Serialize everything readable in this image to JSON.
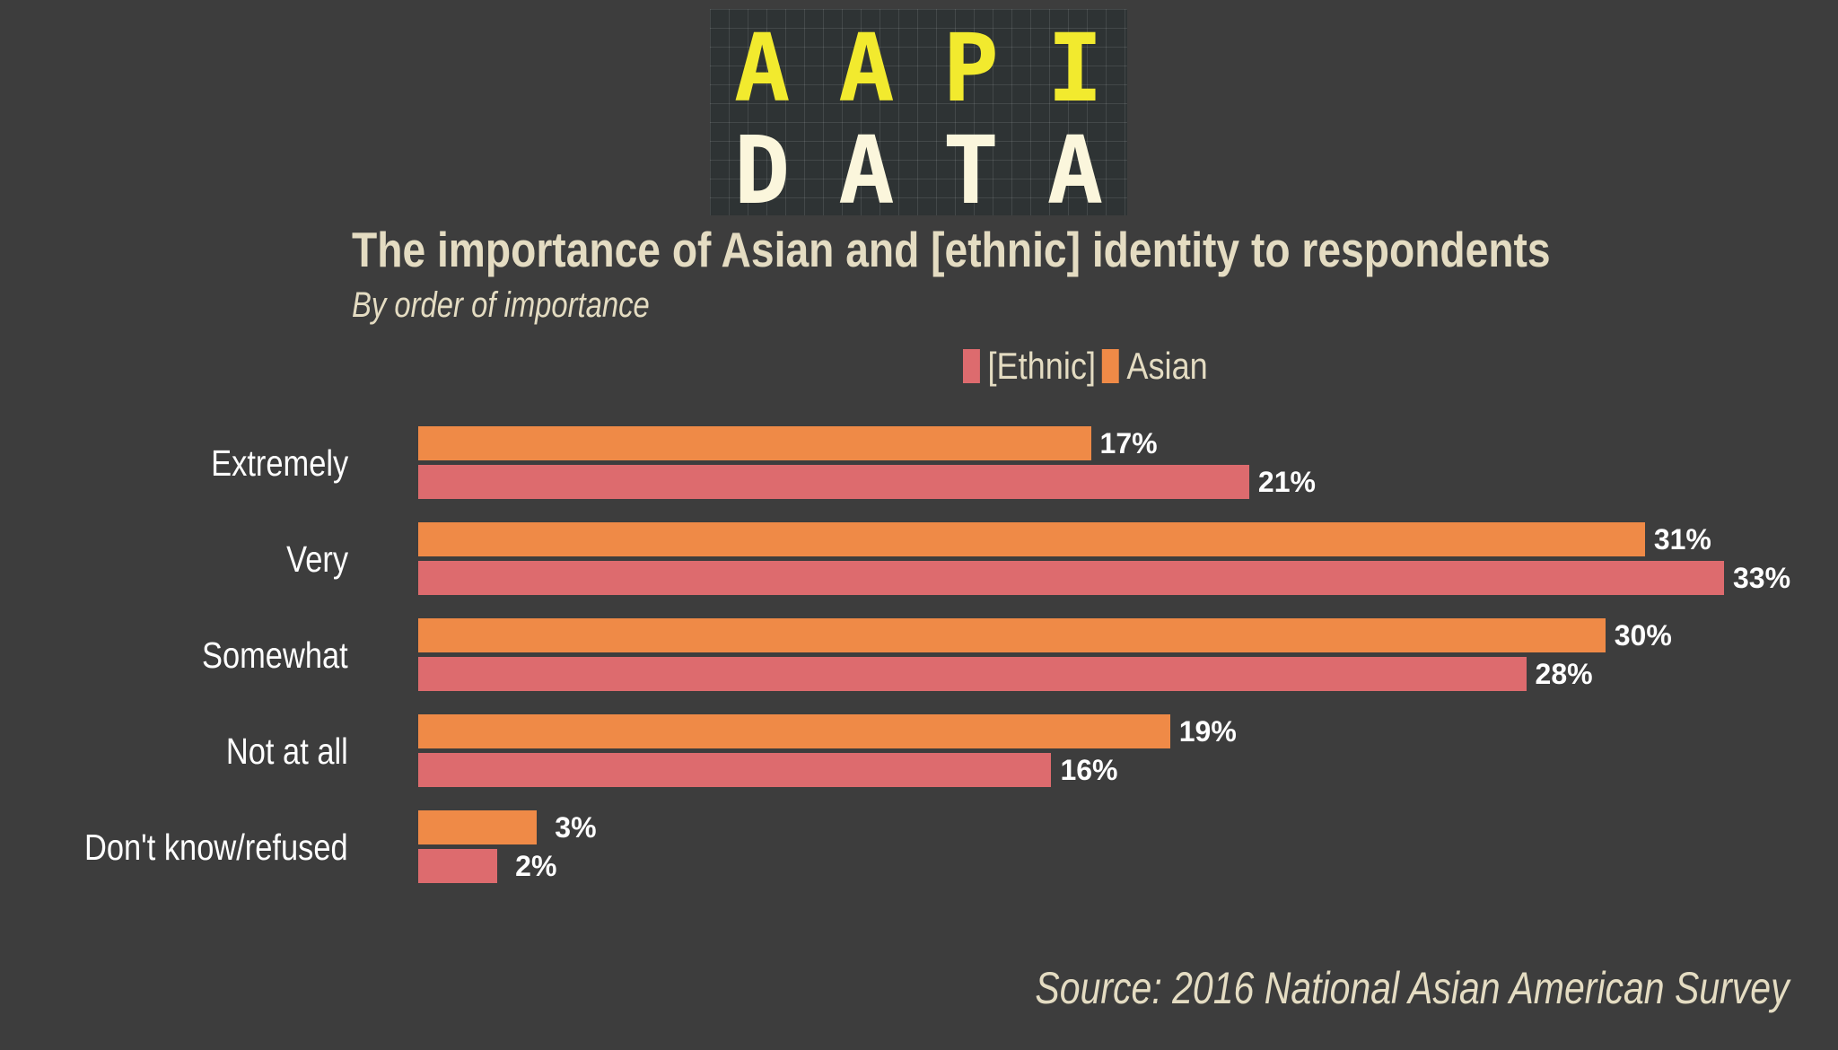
{
  "logo": {
    "top_letters": [
      "A",
      "A",
      "P",
      "I"
    ],
    "bottom_letters": [
      "D",
      "A",
      "T",
      "A"
    ]
  },
  "chart_data": {
    "type": "bar",
    "orientation": "horizontal",
    "title": "The importance of Asian and [ethnic] identity to respondents",
    "subtitle": "By order of importance",
    "categories": [
      "Extremely",
      "Very",
      "Somewhat",
      "Not at all",
      "Don't know/refused"
    ],
    "series": [
      {
        "name": "Asian",
        "color": "#ef8a47",
        "values": [
          17,
          31,
          30,
          19,
          3
        ],
        "labels": [
          "17%",
          "31%",
          "30%",
          "19%",
          "3%"
        ]
      },
      {
        "name": "[Ethnic]",
        "color": "#dd6b6e",
        "values": [
          21,
          33,
          28,
          16,
          2
        ],
        "labels": [
          "21%",
          "33%",
          "28%",
          "16%",
          "2%"
        ]
      }
    ],
    "legend_order": [
      "[Ethnic]",
      "Asian"
    ],
    "legend_position": "top",
    "xlim": [
      0,
      33
    ],
    "grid": false,
    "source": "Source: 2016 National Asian American Survey"
  }
}
